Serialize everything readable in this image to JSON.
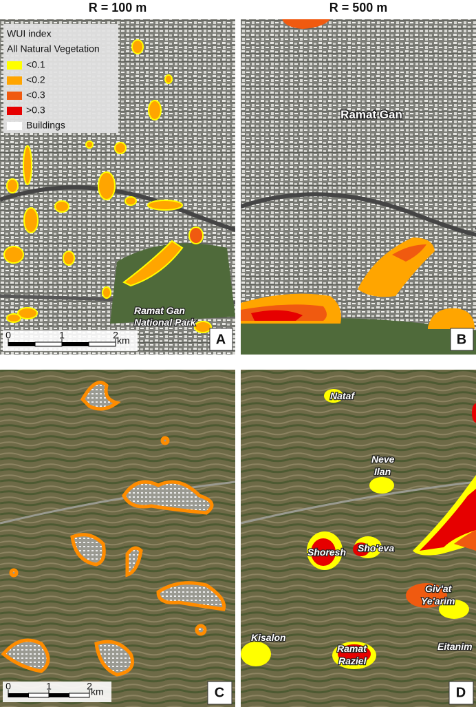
{
  "headers": [
    "R = 100 m",
    "R = 500 m"
  ],
  "legend": {
    "title": "WUI index",
    "subtitle": "All Natural Vegetation",
    "items": [
      {
        "label": "<0.1",
        "color": "#ffff00"
      },
      {
        "label": "<0.2",
        "color": "#ffa500"
      },
      {
        "label": "<0.3",
        "color": "#f05a10"
      },
      {
        "label": ">0.3",
        "color": "#e60000"
      },
      {
        "label": "Buildings",
        "color": "#ffffff"
      }
    ]
  },
  "scale_bar": {
    "ticks": [
      0,
      1,
      2
    ],
    "unit": "km"
  },
  "panels": [
    {
      "letter": "A",
      "labels": [
        [
          "Ramat Gan",
          "National Park"
        ]
      ]
    },
    {
      "letter": "B",
      "labels": [
        [
          "Ramat Gan"
        ]
      ]
    },
    {
      "letter": "C",
      "labels": []
    },
    {
      "letter": "D",
      "labels": [
        [
          "Nataf"
        ],
        [
          "Neve",
          "Ilan"
        ],
        [
          "Shoresh"
        ],
        [
          "Sho'eva"
        ],
        [
          "Giv'at",
          "Ye'arim"
        ],
        [
          "Kisalon"
        ],
        [
          "Ramat",
          "Raziel"
        ],
        [
          "Eitanim"
        ]
      ]
    }
  ]
}
